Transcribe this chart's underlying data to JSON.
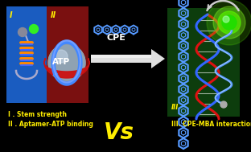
{
  "bg_color": "#000000",
  "left_panel_blue": "#1a5cc0",
  "left_panel_red": "#7a1010",
  "right_panel_green": "#0d3d0d",
  "text_yellow": "#ffee00",
  "text_white": "#ffffff",
  "cpe_color": "#5599ff",
  "arrow_fill": "#e0e0e0",
  "label_I": "I",
  "label_II": "II",
  "label_III": "III",
  "text_CPE": "CPE",
  "text_Vs": "Vs",
  "line1": "I . Stem strength",
  "line2": "II . Aptamer-ATP binding",
  "line3": "III. CPE-MBA interaction",
  "fig_width": 3.12,
  "fig_height": 1.89,
  "dpi": 100
}
